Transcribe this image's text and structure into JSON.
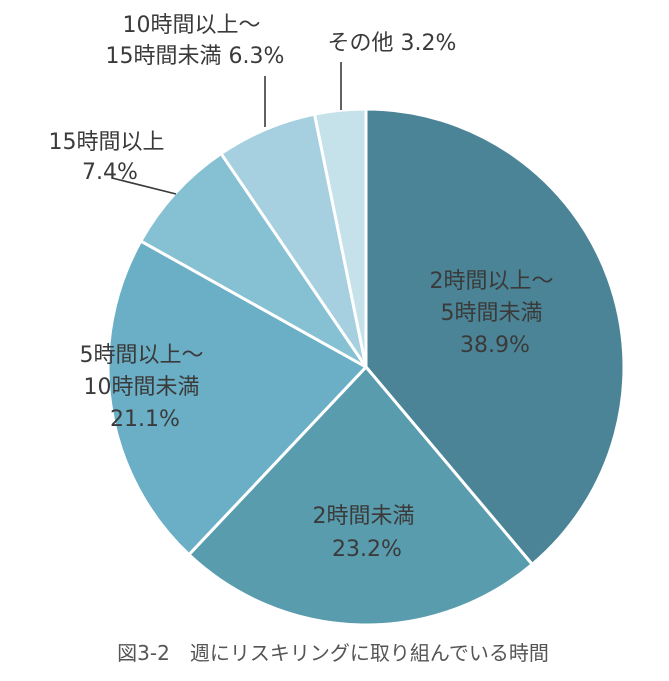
{
  "chart_data": {
    "type": "pie",
    "caption": "図3-2　週にリスキリングに取り組んでいる時間",
    "slices": [
      {
        "label_lines": [
          "2時間以上〜",
          "5時間未満"
        ],
        "value_text": "38.9%",
        "value": 38.9,
        "color": "#4b8496"
      },
      {
        "label_lines": [
          "2時間未満"
        ],
        "value_text": "23.2%",
        "value": 23.2,
        "color": "#599cae"
      },
      {
        "label_lines": [
          "5時間以上〜",
          "10時間未満"
        ],
        "value_text": "21.1%",
        "value": 21.1,
        "color": "#6aafc6"
      },
      {
        "label_lines": [
          "15時間以上"
        ],
        "value_text": "7.4%",
        "value": 7.4,
        "color": "#85c0d3"
      },
      {
        "label_lines": [
          "10時間以上〜",
          "15時間未満 6.3%"
        ],
        "value_text": "",
        "value": 6.3,
        "color": "#a6d0df"
      },
      {
        "label_lines": [
          "その他 3.2%"
        ],
        "value_text": "",
        "value": 3.2,
        "color": "#c5e1ea"
      }
    ]
  }
}
